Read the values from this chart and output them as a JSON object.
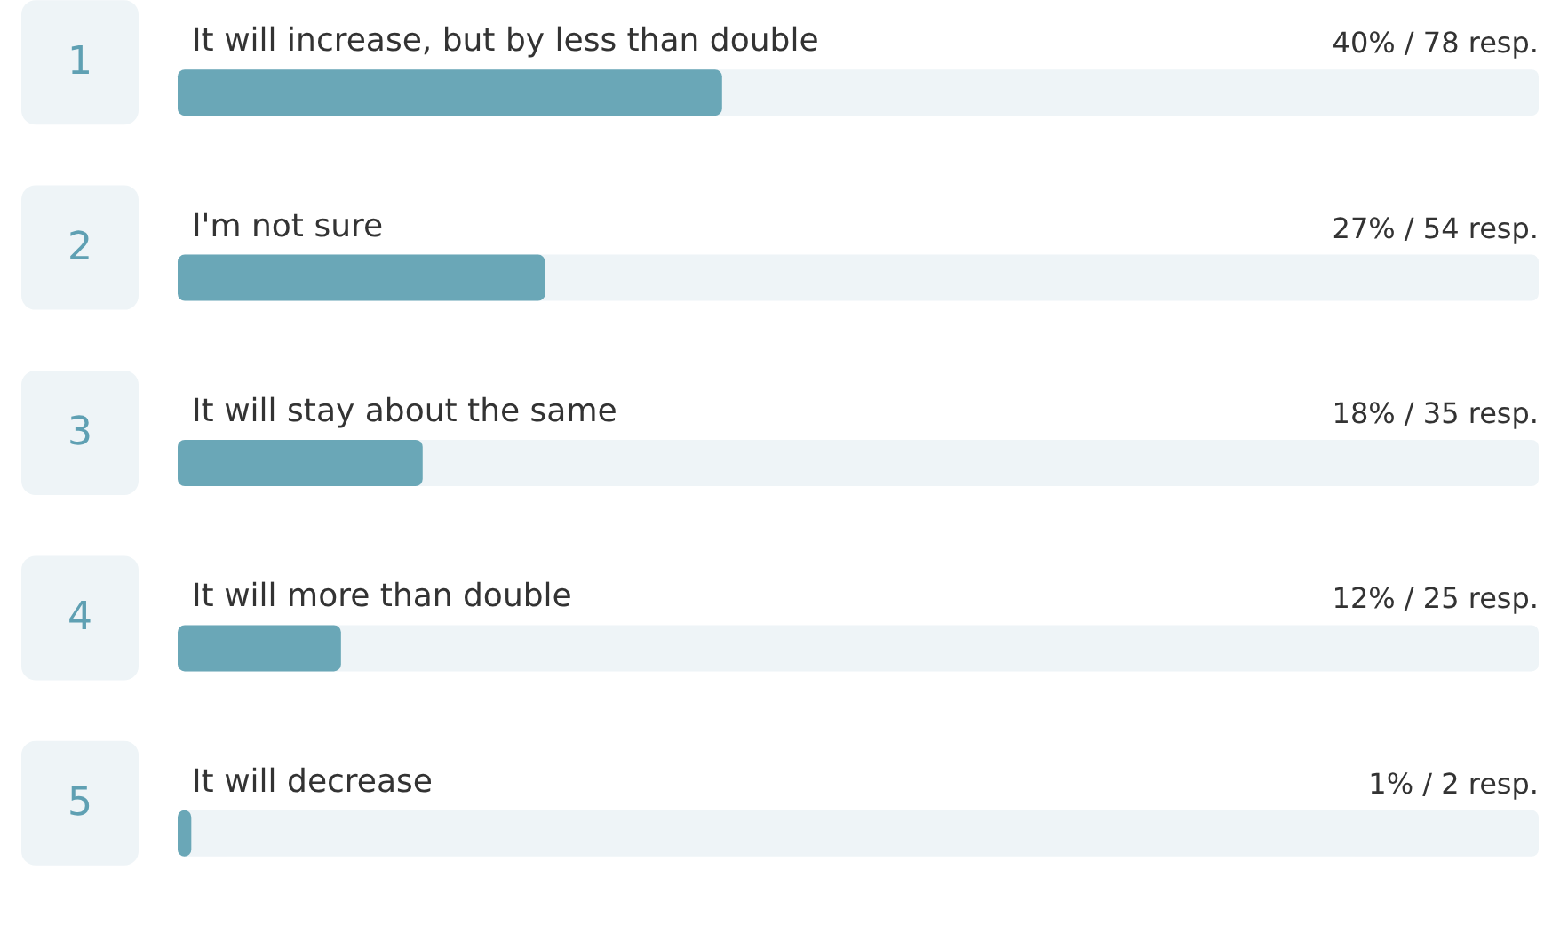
{
  "chart_data": {
    "type": "bar",
    "orientation": "horizontal",
    "categories": [
      "It will increase, but by less than double",
      "I'm not sure",
      "It will stay about the same",
      "It will more than double",
      "It will decrease"
    ],
    "values": [
      40,
      27,
      18,
      12,
      1
    ],
    "value_labels": [
      "40% / 78 resp.",
      "27% / 54 resp.",
      "18% / 35 resp.",
      "12% / 25 resp.",
      "1% / 2 resp."
    ],
    "annotations": [
      "1",
      "2",
      "3",
      "4",
      "5"
    ],
    "color": "#6aa7b7",
    "xlim": [
      0,
      100
    ],
    "tick_labels": false
  }
}
